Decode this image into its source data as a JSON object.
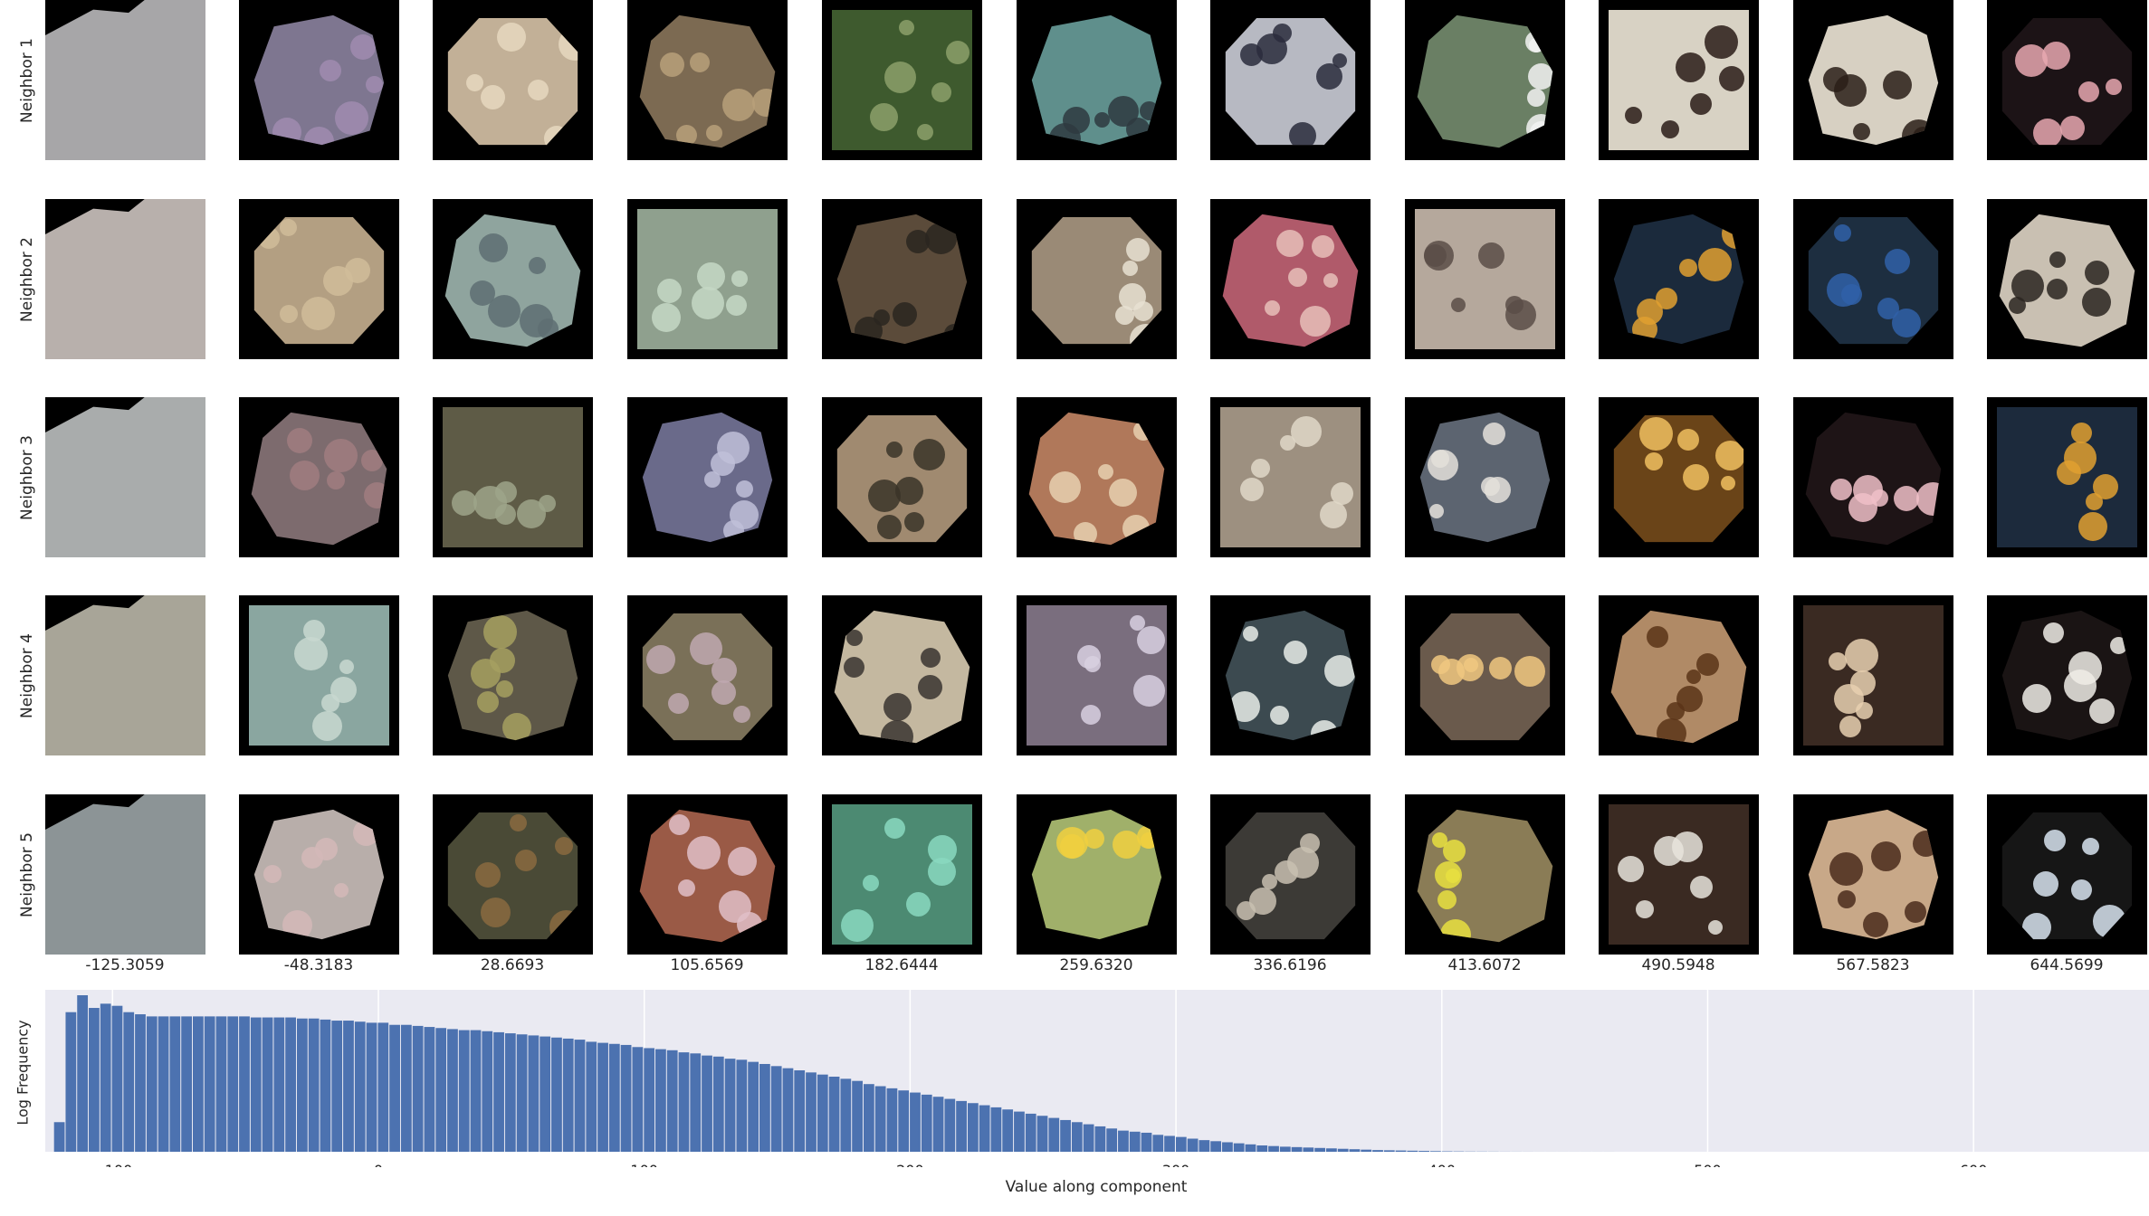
{
  "row_labels": [
    "Neighbor 1",
    "Neighbor 2",
    "Neighbor 3",
    "Neighbor 4",
    "Neighbor 5"
  ],
  "column_values": [
    "-125.3059",
    "-48.3183",
    "28.6693",
    "105.6569",
    "182.6444",
    "259.6320",
    "336.6196",
    "413.6072",
    "490.5948",
    "567.5823",
    "644.5699"
  ],
  "tile_colors": [
    [
      "#a7a6a8",
      "#7e7690",
      "#c2b097",
      "#7c6a52",
      "#3e5a2e",
      "#5f8f8c",
      "#b7b9c2",
      "#6a7f64",
      "#d8d2c4",
      "#d7d0c2",
      "#1c1316"
    ],
    [
      "#b8b0ac",
      "#b39f82",
      "#8fa49e",
      "#8fa08e",
      "#5b4b3a",
      "#9a8a76",
      "#b05a6a",
      "#b5a89c",
      "#1b2a3c",
      "#1d2e40",
      "#c9c0b2"
    ],
    [
      "#a9acac",
      "#7d6b6e",
      "#5e5b46",
      "#6a6a8a",
      "#a08a70",
      "#b0785a",
      "#9d9080",
      "#5c6470",
      "#6a4418",
      "#1e1416",
      "#1c2a3c"
    ],
    [
      "#a8a598",
      "#8aa6a0",
      "#5e5848",
      "#7a7058",
      "#c4b8a0",
      "#7a6e7e",
      "#3c4a50",
      "#6a5a4c",
      "#b08a66",
      "#3a2a22",
      "#1a1414"
    ],
    [
      "#8c9496",
      "#b8aeaa",
      "#4a4a36",
      "#9a5a46",
      "#4c8a72",
      "#a0b06a",
      "#3c3a36",
      "#8a7c56",
      "#3a2a22",
      "#c8a888",
      "#161616"
    ]
  ],
  "tile_accents": [
    [
      "#b5b4b6",
      "#a08cb0",
      "#e6d8be",
      "#b8a07a",
      "#8ca06a",
      "#2e3a40",
      "#2a2c3c",
      "#f2f2f2",
      "#2a1c18",
      "#2a1e18",
      "#e8a8b0"
    ],
    [
      "#c4bcb8",
      "#d0bc9a",
      "#5e6e72",
      "#c6d8c6",
      "#2a2620",
      "#e8e0d2",
      "#e8c0b8",
      "#5a4e48",
      "#e0a030",
      "#3060a8",
      "#2a2420"
    ],
    [
      "#b4b8b6",
      "#a07c80",
      "#9ea48a",
      "#c0c0d8",
      "#3a3428",
      "#e8d0b0",
      "#e0d8c8",
      "#e4e0da",
      "#f0c060",
      "#f0c0c8",
      "#e0a030"
    ],
    [
      "#b2b0a4",
      "#c8d8d0",
      "#a6a060",
      "#c0a8b0",
      "#3a3430",
      "#d8d0e0",
      "#e8ece8",
      "#f0c880",
      "#5a3418",
      "#e8d0b0",
      "#f0ece6"
    ],
    [
      "#9aa2a4",
      "#d4b8b8",
      "#8a6a40",
      "#e0c0c8",
      "#8ad8c0",
      "#f0d040",
      "#c8c0b0",
      "#e8e040",
      "#e8e4dc",
      "#4a2c1c",
      "#d8e4f0"
    ]
  ],
  "chart_data": {
    "type": "bar",
    "xlabel": "Value along component",
    "ylabel": "Log Frequency",
    "xlim": [
      -125.3,
      666
    ],
    "xticks": [
      -100,
      0,
      100,
      200,
      300,
      400,
      500,
      600
    ],
    "xtick_labels": [
      "−100",
      "0",
      "100",
      "200",
      "300",
      "400",
      "500",
      "600"
    ],
    "grid": true,
    "background": "#eaeaf2",
    "bar_color": "#4c72b0",
    "bin_start": -122,
    "bin_width": 4.35,
    "log_freq_max": 7.4,
    "values": [
      1.4,
      6.6,
      7.4,
      6.8,
      7.0,
      6.9,
      6.6,
      6.5,
      6.4,
      6.4,
      6.4,
      6.4,
      6.4,
      6.4,
      6.4,
      6.4,
      6.4,
      6.35,
      6.35,
      6.35,
      6.35,
      6.3,
      6.3,
      6.25,
      6.2,
      6.2,
      6.15,
      6.1,
      6.1,
      6.0,
      6.0,
      5.95,
      5.9,
      5.85,
      5.8,
      5.75,
      5.75,
      5.7,
      5.65,
      5.6,
      5.55,
      5.5,
      5.45,
      5.4,
      5.35,
      5.3,
      5.2,
      5.15,
      5.1,
      5.05,
      4.95,
      4.9,
      4.85,
      4.8,
      4.7,
      4.65,
      4.55,
      4.5,
      4.4,
      4.35,
      4.25,
      4.15,
      4.05,
      3.95,
      3.85,
      3.75,
      3.65,
      3.55,
      3.45,
      3.35,
      3.2,
      3.1,
      3.0,
      2.9,
      2.8,
      2.7,
      2.6,
      2.5,
      2.4,
      2.3,
      2.2,
      2.1,
      2.0,
      1.9,
      1.8,
      1.7,
      1.6,
      1.5,
      1.4,
      1.3,
      1.2,
      1.1,
      1.0,
      0.95,
      0.9,
      0.8,
      0.75,
      0.7,
      0.62,
      0.55,
      0.5,
      0.45,
      0.4,
      0.35,
      0.3,
      0.27,
      0.24,
      0.22,
      0.2,
      0.18,
      0.16,
      0.14,
      0.12,
      0.1,
      0.08,
      0.07,
      0.06,
      0.05,
      0.04,
      0.03,
      0.02,
      0.015,
      0.01,
      0.008,
      0.006,
      0.004,
      0.003,
      0.002,
      0.001,
      0.001,
      0.001,
      0.001,
      0.001,
      0.001,
      0.001
    ]
  }
}
